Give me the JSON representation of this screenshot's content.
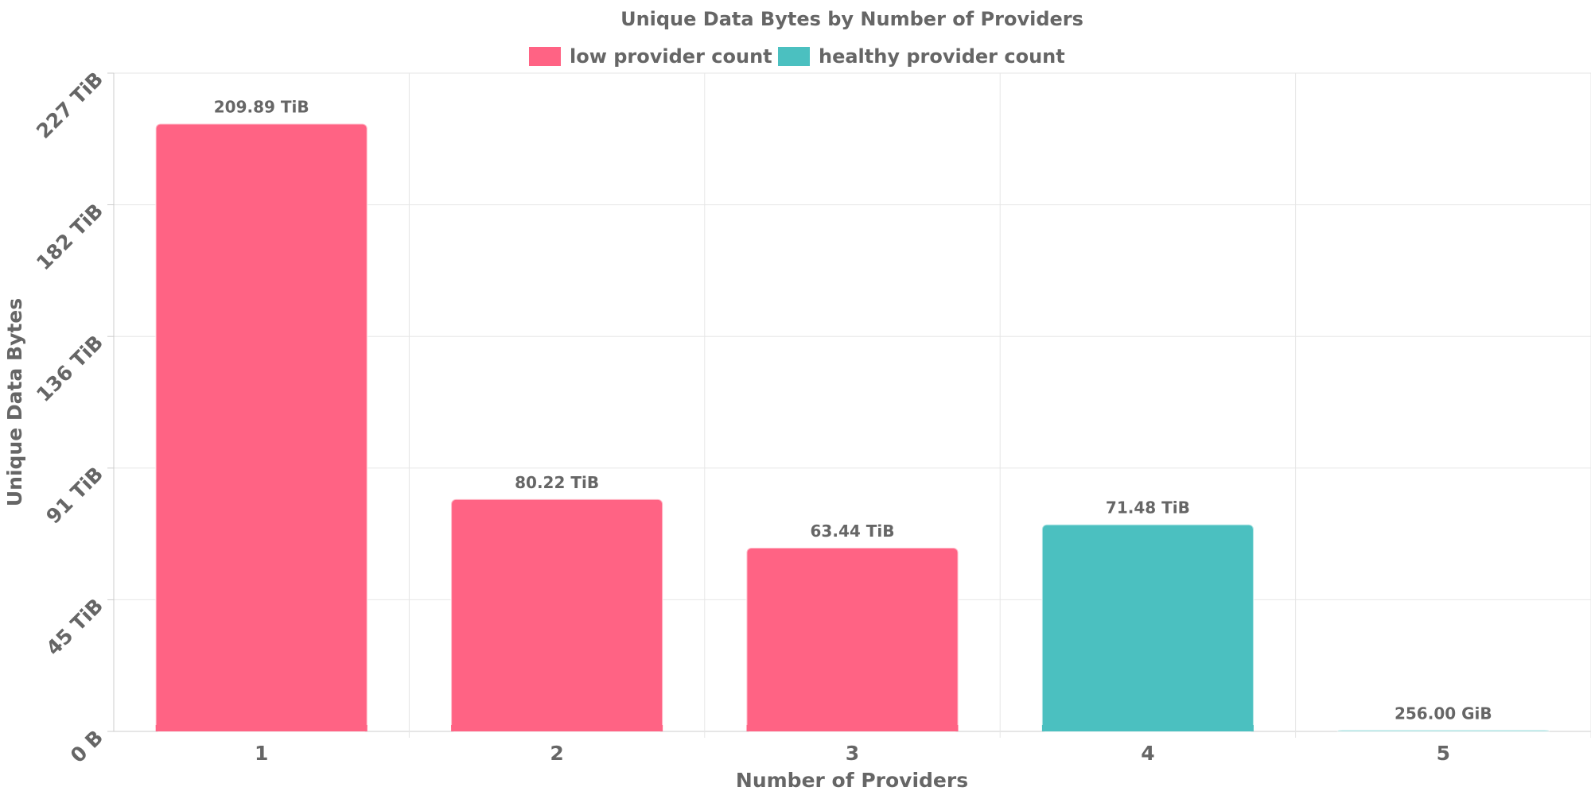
{
  "chart_data": {
    "type": "bar",
    "title": "Unique Data Bytes by Number of Providers",
    "xlabel": "Number of Providers",
    "ylabel": "Unique Data Bytes",
    "categories": [
      "1",
      "2",
      "3",
      "4",
      "5"
    ],
    "values_tib": [
      209.89,
      80.22,
      63.44,
      71.48,
      0.25
    ],
    "data_labels": [
      "209.89 TiB",
      "80.22 TiB",
      "63.44 TiB",
      "71.48 TiB",
      "256.00 GiB"
    ],
    "bar_series": [
      "low provider count",
      "low provider count",
      "low provider count",
      "healthy provider count",
      "healthy provider count"
    ],
    "ylim_tib": [
      0,
      227.37
    ],
    "y_tick_values_tib": [
      0,
      45.47,
      90.95,
      136.42,
      181.9,
      227.37
    ],
    "y_tick_labels": [
      "0 B",
      "45 TiB",
      "91 TiB",
      "136 TiB",
      "182 TiB",
      "227 TiB"
    ],
    "legend": [
      {
        "name": "low provider count",
        "color": "#ff6384"
      },
      {
        "name": "healthy provider count",
        "color": "#4bc0c0"
      }
    ],
    "legend_position": "top",
    "grid": true
  }
}
